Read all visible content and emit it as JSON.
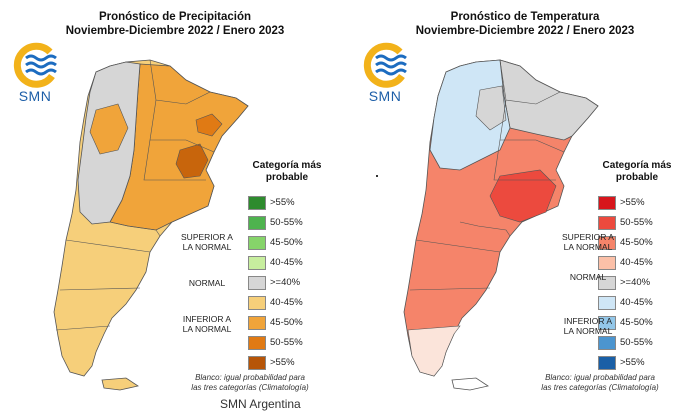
{
  "left": {
    "title_line1": "Pronóstico de Precipitación",
    "title_line2": "Noviembre-Diciembre 2022 / Enero 2023",
    "logo_text": "SMN",
    "legend": {
      "title_line1": "Categoría más",
      "title_line2": "probable",
      "items": [
        {
          "label": ">55%",
          "color": "#2e8b2e"
        },
        {
          "label": "50-55%",
          "color": "#4eb34e"
        },
        {
          "label": "45-50%",
          "color": "#86d46a"
        },
        {
          "label": "40-45%",
          "color": "#c7ee9e"
        },
        {
          "label": ">=40%",
          "color": "#d6d6d6"
        },
        {
          "label": "40-45%",
          "color": "#f6cf7a"
        },
        {
          "label": "45-50%",
          "color": "#f0a43a"
        },
        {
          "label": "50-55%",
          "color": "#e07a14"
        },
        {
          "label": ">55%",
          "color": "#b65508"
        }
      ],
      "group_upper_line1": "SUPERIOR A",
      "group_upper_line2": "LA NORMAL",
      "group_normal": "NORMAL",
      "group_lower_line1": "INFERIOR A",
      "group_lower_line2": "LA NORMAL"
    },
    "footnote_line1": "Blanco: igual probabilidad para",
    "footnote_line2": "las tres categorías (Climatología)"
  },
  "right": {
    "title_line1": "Pronóstico de Temperatura",
    "title_line2": "Noviembre-Diciembre 2022 / Enero 2023",
    "logo_text": "SMN",
    "legend": {
      "title_line1": "Categoría más",
      "title_line2": "probable",
      "items": [
        {
          "label": ">55%",
          "color": "#d7161c"
        },
        {
          "label": "50-55%",
          "color": "#ec4a3e"
        },
        {
          "label": "45-50%",
          "color": "#f5846a"
        },
        {
          "label": "40-45%",
          "color": "#fbc0a8"
        },
        {
          "label": ">=40%",
          "color": "#d6d6d6"
        },
        {
          "label": "40-45%",
          "color": "#cfe6f6"
        },
        {
          "label": "45-50%",
          "color": "#93c7e9"
        },
        {
          "label": "50-55%",
          "color": "#4c95cf"
        },
        {
          "label": ">55%",
          "color": "#1a5fa6"
        }
      ],
      "group_upper_line1": "SUPERIOR A",
      "group_upper_line2": "LA NORMAL",
      "group_normal": "NORMAL",
      "group_lower_line1": "INFERIOR A",
      "group_lower_line2": "LA NORMAL"
    },
    "footnote_line1": "Blanco: igual probabilidad para",
    "footnote_line2": "las tres categorías (Climatología)"
  },
  "bottom_text": "SMN Argentina"
}
